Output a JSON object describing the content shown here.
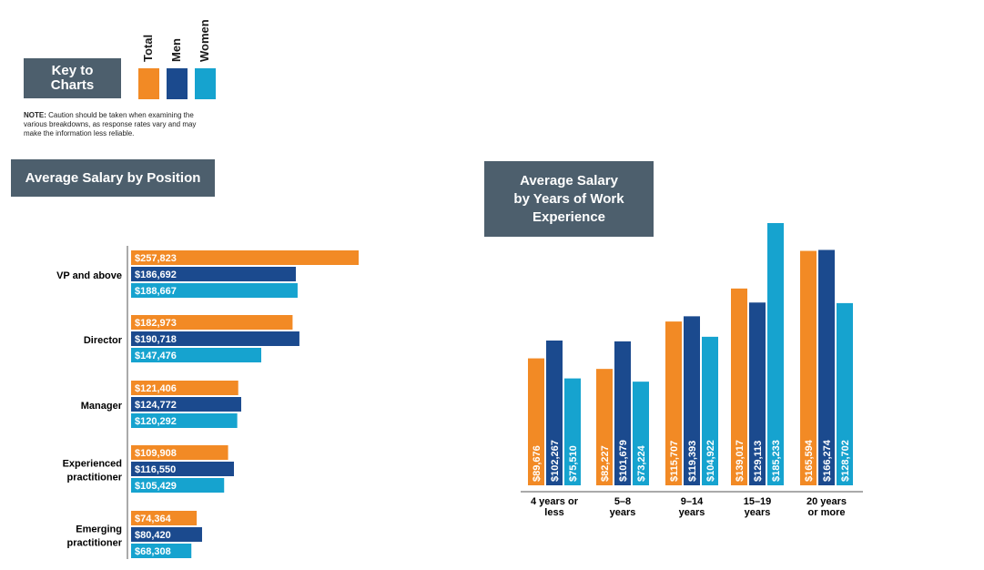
{
  "key": {
    "title": "Key to\nCharts",
    "items": [
      {
        "label": "Total",
        "color": "#f28a25"
      },
      {
        "label": "Men",
        "color": "#1b4a8e"
      },
      {
        "label": "Women",
        "color": "#16a3cf"
      }
    ],
    "note_bold": "NOTE:",
    "note_text": " Caution should be taken when examining the various breakdowns, as response rates vary and may make the information less reliable."
  },
  "chart_data": [
    {
      "type": "bar",
      "orientation": "horizontal",
      "title": "Average Salary by Position",
      "categories": [
        "VP and above",
        "Director",
        "Manager",
        "Experienced practitioner",
        "Emerging practitioner"
      ],
      "series": [
        {
          "name": "Total",
          "values": [
            257823,
            182973,
            121406,
            109908,
            74364
          ],
          "labels": [
            "$257,823",
            "$182,973",
            "$121,406",
            "$109,908",
            "$74,364"
          ]
        },
        {
          "name": "Men",
          "values": [
            186692,
            190718,
            124772,
            116550,
            80420
          ],
          "labels": [
            "$186,692",
            "$190,718",
            "$124,772",
            "$116,550",
            "$80,420"
          ]
        },
        {
          "name": "Women",
          "values": [
            188667,
            147476,
            120292,
            105429,
            68308
          ],
          "labels": [
            "$188,667",
            "$147,476",
            "$120,292",
            "$105,429",
            "$68,308"
          ]
        }
      ]
    },
    {
      "type": "bar",
      "orientation": "vertical",
      "title": "Average Salary\nby Years of Work\nExperience",
      "categories": [
        "4 years or\nless",
        "5–8\nyears",
        "9–14\nyears",
        "15–19\nyears",
        "20 years\nor more"
      ],
      "series": [
        {
          "name": "Total",
          "values": [
            89676,
            82227,
            115707,
            139017,
            165594
          ],
          "labels": [
            "$89,676",
            "$82,227",
            "$115,707",
            "$139,017",
            "$165,594"
          ]
        },
        {
          "name": "Men",
          "values": [
            102267,
            101679,
            119393,
            129113,
            166274
          ],
          "labels": [
            "$102,267",
            "$101,679",
            "$119,393",
            "$129,113",
            "$166,274"
          ]
        },
        {
          "name": "Women",
          "values": [
            75510,
            73224,
            104922,
            185233,
            128702
          ],
          "labels": [
            "$75,510",
            "$73,224",
            "$104,922",
            "$185,233",
            "$128,702"
          ]
        }
      ]
    }
  ]
}
